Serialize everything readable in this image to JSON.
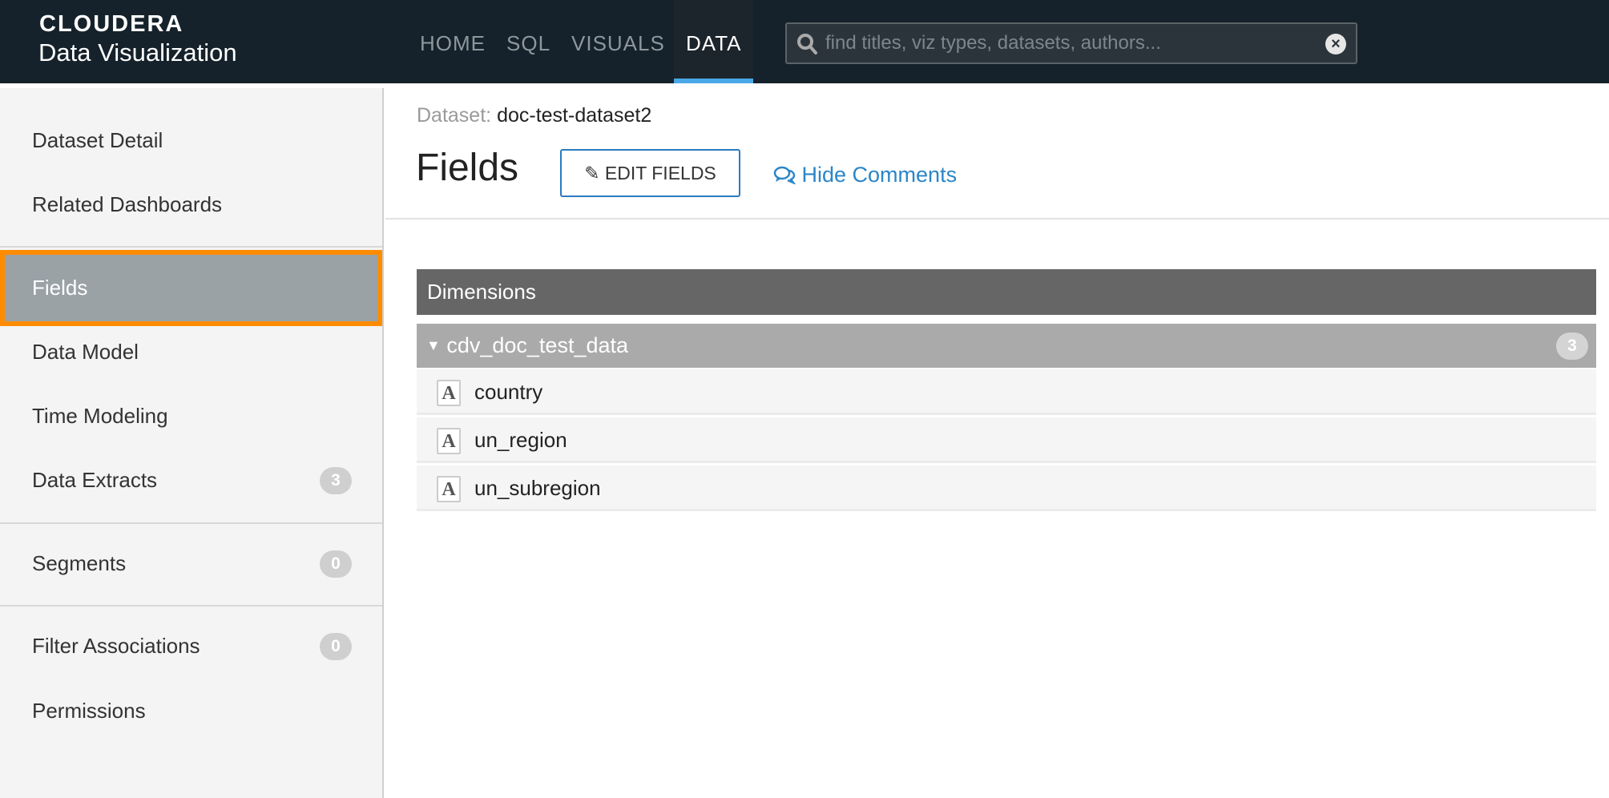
{
  "header": {
    "logo": "CLOUDERA",
    "app_name": "Data Visualization",
    "nav": [
      {
        "label": "HOME"
      },
      {
        "label": "SQL"
      },
      {
        "label": "VISUALS"
      },
      {
        "label": "DATA",
        "active": true
      }
    ],
    "search_placeholder": "find titles, viz types, datasets, authors...",
    "accent": "#4aa8e8"
  },
  "sidebar": {
    "items": [
      {
        "label": "Dataset Detail"
      },
      {
        "label": "Related Dashboards"
      },
      {
        "label": "Fields",
        "active": true
      },
      {
        "label": "Data Model"
      },
      {
        "label": "Time Modeling"
      },
      {
        "label": "Data Extracts",
        "badge": "3"
      },
      {
        "label": "Segments",
        "badge": "0"
      },
      {
        "label": "Filter Associations",
        "badge": "0"
      },
      {
        "label": "Permissions"
      }
    ],
    "highlight_color": "#ff8c00"
  },
  "main": {
    "dataset_label": "Dataset:",
    "dataset_name": "doc-test-dataset2",
    "title": "Fields",
    "edit_button": "EDIT FIELDS",
    "hide_comments": "Hide Comments",
    "section": "Dimensions",
    "group": {
      "name": "cdv_doc_test_data",
      "count": "3"
    },
    "fields": [
      {
        "type": "text",
        "name": "country"
      },
      {
        "type": "text",
        "name": "un_region"
      },
      {
        "type": "text",
        "name": "un_subregion"
      }
    ],
    "field_type_glyph": "A"
  }
}
